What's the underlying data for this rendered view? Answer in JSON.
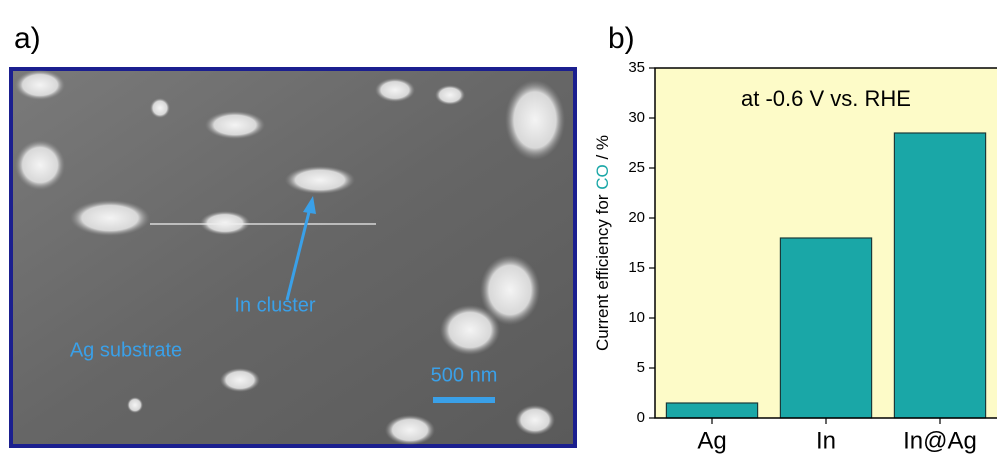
{
  "panel_a": {
    "label": "a)",
    "annotations": [
      "In cluster",
      "Ag substrate",
      "500 nm"
    ]
  },
  "panel_b_label": "b)",
  "chart_data": {
    "type": "bar",
    "ylabel": [
      "Current efficiency for ",
      "CO",
      " / %"
    ],
    "ylabel_colors": [
      "#000000",
      "#1aa7a7",
      "#000000"
    ],
    "annotation": "at -0.6 V vs. RHE",
    "categories": [
      "Ag",
      "In",
      "In@Ag"
    ],
    "values": [
      1.5,
      18,
      28.5
    ],
    "color": "#1aa7a7",
    "background": "#fdfbc8",
    "ylim": [
      0,
      35
    ],
    "yticks": [
      0,
      5,
      10,
      15,
      20,
      25,
      30,
      35
    ]
  }
}
